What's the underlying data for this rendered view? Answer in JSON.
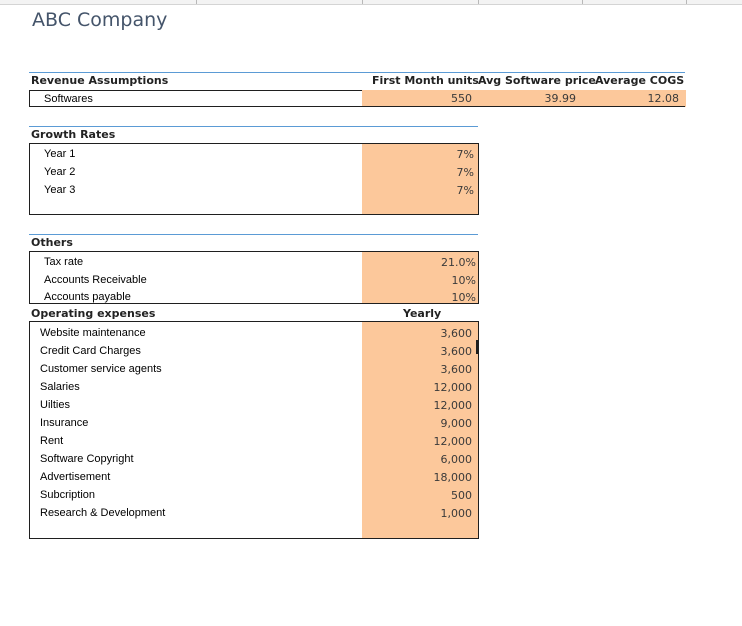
{
  "title": "ABC Company",
  "revenue": {
    "header": "Revenue Assumptions",
    "columns": [
      "First Month units",
      "Avg Software price",
      "Average COGS"
    ],
    "row": {
      "label": "Softwares",
      "first_month_units": "550",
      "avg_software_price": "39.99",
      "average_cogs": "12.08"
    }
  },
  "growth": {
    "header": "Growth Rates",
    "rows": [
      {
        "label": "Year 1",
        "value": "7%"
      },
      {
        "label": "Year 2",
        "value": "7%"
      },
      {
        "label": "Year 3",
        "value": "7%"
      }
    ]
  },
  "others": {
    "header": "Others",
    "rows": [
      {
        "label": "Tax rate",
        "value": "21.0%"
      },
      {
        "label": "Accounts Receivable",
        "value": "10%"
      },
      {
        "label": "Accounts payable",
        "value": "10%"
      }
    ]
  },
  "opex": {
    "header": "Operating expenses",
    "column": "Yearly",
    "rows": [
      {
        "label": "Website maintenance",
        "value": "3,600"
      },
      {
        "label": "Credit Card Charges",
        "value": "3,600"
      },
      {
        "label": "Customer service agents",
        "value": "3,600"
      },
      {
        "label": "Salaries",
        "value": "12,000"
      },
      {
        "label": "Uilties",
        "value": "12,000"
      },
      {
        "label": "Insurance",
        "value": "9,000"
      },
      {
        "label": "Rent",
        "value": "12,000"
      },
      {
        "label": "Software Copyright",
        "value": "6,000"
      },
      {
        "label": "Advertisement",
        "value": "18,000"
      },
      {
        "label": "Subcription",
        "value": "500"
      },
      {
        "label": "Research & Development",
        "value": "1,000"
      }
    ]
  },
  "colors": {
    "input_fill": "#fcc89b",
    "header_line": "#5b9bd5",
    "title": "#44546a"
  }
}
